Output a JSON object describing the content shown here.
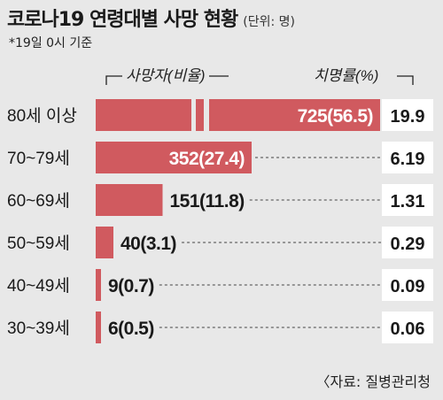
{
  "title": "코로나19 연령대별 사망 현황",
  "unit": "(단위: 명)",
  "note": "*19일 0시 기준",
  "source": "〈자료: 질병관리청",
  "colors": {
    "bar": "#d05a5f",
    "background": "#e8e8e8",
    "box": "#ffffff",
    "text": "#1a1a1a"
  },
  "chart_data": {
    "type": "bar",
    "orientation": "horizontal",
    "axis_break": "top bar truncated",
    "categories": [
      "80세 이상",
      "70~79세",
      "60~69세",
      "50~59세",
      "40~49세",
      "30~39세"
    ],
    "series": [
      {
        "name": "사망자(비율)",
        "values": [
          725,
          352,
          151,
          40,
          9,
          6
        ],
        "labels": [
          "725(56.5)",
          "352(27.4)",
          "151(11.8)",
          "40(3.1)",
          "9(0.7)",
          "6(0.5)"
        ]
      },
      {
        "name": "치명률(%)",
        "values": [
          19.9,
          6.19,
          1.31,
          0.29,
          0.09,
          0.06
        ],
        "labels": [
          "19.9",
          "6.19",
          "1.31",
          "0.29",
          "0.09",
          "0.06"
        ]
      }
    ]
  }
}
